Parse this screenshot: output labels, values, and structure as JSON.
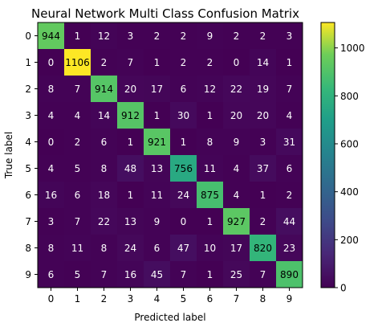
{
  "chart_data": {
    "type": "heatmap",
    "title": "Neural Network Multi Class Confusion Matrix",
    "xlabel": "Predicted label",
    "ylabel": "True label",
    "x_categories": [
      "0",
      "1",
      "2",
      "3",
      "4",
      "5",
      "6",
      "7",
      "8",
      "9"
    ],
    "y_categories": [
      "0",
      "1",
      "2",
      "3",
      "4",
      "5",
      "6",
      "7",
      "8",
      "9"
    ],
    "values": [
      [
        944,
        1,
        12,
        3,
        2,
        2,
        9,
        2,
        2,
        3
      ],
      [
        0,
        1106,
        2,
        7,
        1,
        2,
        2,
        0,
        14,
        1
      ],
      [
        8,
        7,
        914,
        20,
        17,
        6,
        12,
        22,
        19,
        7
      ],
      [
        4,
        4,
        14,
        912,
        1,
        30,
        1,
        20,
        20,
        4
      ],
      [
        0,
        2,
        6,
        1,
        921,
        1,
        8,
        9,
        3,
        31
      ],
      [
        4,
        5,
        8,
        48,
        13,
        756,
        11,
        4,
        37,
        6
      ],
      [
        16,
        6,
        18,
        1,
        11,
        24,
        875,
        4,
        1,
        2
      ],
      [
        3,
        7,
        22,
        13,
        9,
        0,
        1,
        927,
        2,
        44
      ],
      [
        8,
        11,
        8,
        24,
        6,
        47,
        10,
        17,
        820,
        23
      ],
      [
        6,
        5,
        7,
        16,
        45,
        7,
        1,
        25,
        7,
        890
      ]
    ],
    "colormap": "viridis",
    "colorbar": {
      "range": [
        0,
        1106
      ],
      "ticks": [
        0,
        200,
        400,
        600,
        800,
        1000
      ]
    },
    "text_colors": {
      "dark_cell": "#ffffff",
      "light_cell": "#000000"
    },
    "grid": false
  }
}
